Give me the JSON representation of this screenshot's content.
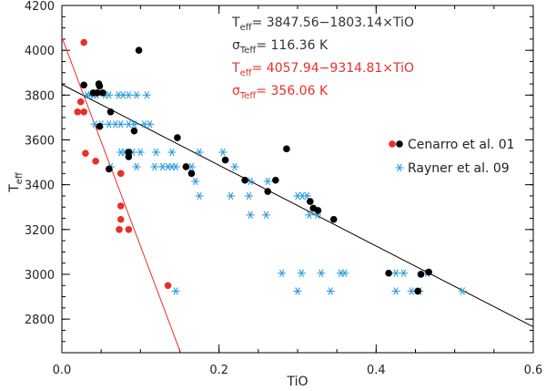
{
  "chart_data": {
    "type": "scatter",
    "xlabel": "TiO",
    "ylabel_main": "T",
    "ylabel_sub": "eff",
    "xlim": [
      0.0,
      0.6
    ],
    "ylim": [
      2650,
      4200
    ],
    "x_ticks": [
      0.0,
      0.2,
      0.4,
      0.6
    ],
    "x_tick_labels": [
      "0.0",
      "0.2",
      "0.4",
      "0.6"
    ],
    "y_ticks": [
      2800,
      3000,
      3200,
      3400,
      3600,
      3800,
      4000,
      4200
    ],
    "y_tick_labels": [
      "2800",
      "3000",
      "3200",
      "3400",
      "3600",
      "3800",
      "4000",
      "4200"
    ],
    "annotations": [
      {
        "main": "T",
        "sub": "eff",
        "rest": "= 3847.56−1803.14×TiO",
        "color": "#333333"
      },
      {
        "main": "σ",
        "sub": "Teff",
        "rest": "= 116.36 K",
        "color": "#333333"
      },
      {
        "main": "T",
        "sub": "eff",
        "rest": "= 4057.94−9314.81×TiO",
        "color": "#e8302a"
      },
      {
        "main": "σ",
        "sub": "Teff",
        "rest": "= 356.06 K",
        "color": "#e8302a"
      }
    ],
    "fit_lines": [
      {
        "name": "black fit",
        "intercept": 3847.56,
        "slope": -1803.14,
        "color": "#000000"
      },
      {
        "name": "red fit",
        "intercept": 4057.94,
        "slope": -9314.81,
        "color": "#e8302a"
      }
    ],
    "legend": [
      {
        "label": "Cenarro et al. 01",
        "marker": "dot-pair"
      },
      {
        "label": "Rayner et al. 09",
        "marker": "asterisk"
      }
    ],
    "series": [
      {
        "name": "Cenarro et al. 01 (black)",
        "color": "#000000",
        "marker": "dot",
        "points": [
          [
            0.028,
            3845
          ],
          [
            0.04,
            3810
          ],
          [
            0.045,
            3810
          ],
          [
            0.047,
            3850
          ],
          [
            0.048,
            3840
          ],
          [
            0.052,
            3810
          ],
          [
            0.048,
            3660
          ],
          [
            0.062,
            3725
          ],
          [
            0.06,
            3470
          ],
          [
            0.085,
            3545
          ],
          [
            0.085,
            3525
          ],
          [
            0.092,
            3640
          ],
          [
            0.098,
            4000
          ],
          [
            0.147,
            3610
          ],
          [
            0.158,
            3480
          ],
          [
            0.165,
            3450
          ],
          [
            0.208,
            3510
          ],
          [
            0.233,
            3420
          ],
          [
            0.262,
            3370
          ],
          [
            0.272,
            3420
          ],
          [
            0.286,
            3560
          ],
          [
            0.316,
            3325
          ],
          [
            0.32,
            3295
          ],
          [
            0.326,
            3285
          ],
          [
            0.346,
            3245
          ],
          [
            0.416,
            3005
          ],
          [
            0.453,
            2925
          ],
          [
            0.457,
            3000
          ],
          [
            0.467,
            3010
          ]
        ]
      },
      {
        "name": "Cenarro et al. 01 (red)",
        "color": "#e8302a",
        "marker": "dot",
        "points": [
          [
            0.028,
            4035
          ],
          [
            0.02,
            3725
          ],
          [
            0.028,
            3725
          ],
          [
            0.024,
            3770
          ],
          [
            0.03,
            3540
          ],
          [
            0.043,
            3505
          ],
          [
            0.075,
            3450
          ],
          [
            0.075,
            3305
          ],
          [
            0.075,
            3245
          ],
          [
            0.073,
            3200
          ],
          [
            0.085,
            3200
          ],
          [
            0.135,
            2950
          ]
        ]
      },
      {
        "name": "Rayner et al. 09",
        "color": "#2a9be0",
        "marker": "asterisk",
        "points": [
          [
            0.032,
            3800
          ],
          [
            0.036,
            3800
          ],
          [
            0.04,
            3800
          ],
          [
            0.044,
            3800
          ],
          [
            0.055,
            3800
          ],
          [
            0.06,
            3800
          ],
          [
            0.072,
            3800
          ],
          [
            0.078,
            3800
          ],
          [
            0.085,
            3800
          ],
          [
            0.095,
            3800
          ],
          [
            0.108,
            3800
          ],
          [
            0.042,
            3670
          ],
          [
            0.05,
            3670
          ],
          [
            0.06,
            3670
          ],
          [
            0.068,
            3670
          ],
          [
            0.075,
            3670
          ],
          [
            0.085,
            3670
          ],
          [
            0.092,
            3670
          ],
          [
            0.105,
            3670
          ],
          [
            0.112,
            3670
          ],
          [
            0.075,
            3545
          ],
          [
            0.08,
            3545
          ],
          [
            0.09,
            3545
          ],
          [
            0.1,
            3545
          ],
          [
            0.12,
            3545
          ],
          [
            0.14,
            3545
          ],
          [
            0.175,
            3545
          ],
          [
            0.205,
            3545
          ],
          [
            0.062,
            3480
          ],
          [
            0.095,
            3480
          ],
          [
            0.118,
            3480
          ],
          [
            0.128,
            3480
          ],
          [
            0.135,
            3480
          ],
          [
            0.14,
            3480
          ],
          [
            0.145,
            3480
          ],
          [
            0.165,
            3480
          ],
          [
            0.22,
            3480
          ],
          [
            0.17,
            3415
          ],
          [
            0.24,
            3415
          ],
          [
            0.262,
            3415
          ],
          [
            0.175,
            3350
          ],
          [
            0.215,
            3350
          ],
          [
            0.238,
            3350
          ],
          [
            0.3,
            3350
          ],
          [
            0.306,
            3350
          ],
          [
            0.312,
            3350
          ],
          [
            0.24,
            3265
          ],
          [
            0.26,
            3265
          ],
          [
            0.315,
            3265
          ],
          [
            0.325,
            3265
          ],
          [
            0.28,
            3005
          ],
          [
            0.305,
            3005
          ],
          [
            0.33,
            3005
          ],
          [
            0.355,
            3005
          ],
          [
            0.36,
            3005
          ],
          [
            0.425,
            3005
          ],
          [
            0.435,
            3005
          ],
          [
            0.465,
            3005
          ],
          [
            0.145,
            2925
          ],
          [
            0.3,
            2925
          ],
          [
            0.342,
            2925
          ],
          [
            0.425,
            2925
          ],
          [
            0.445,
            2925
          ],
          [
            0.455,
            2925
          ],
          [
            0.51,
            2925
          ]
        ]
      }
    ]
  }
}
